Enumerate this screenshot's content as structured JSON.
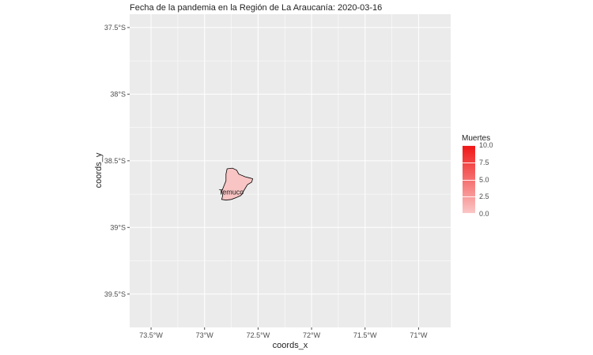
{
  "title": "Fecha de la pandemia en la Región de La Araucanía: 2020-03-16",
  "map": {
    "x_axis_title": "coords_x",
    "y_axis_title": "coords_y",
    "x_ticks": [
      {
        "label": "73.5°W",
        "lon": -73.5
      },
      {
        "label": "73°W",
        "lon": -73.0
      },
      {
        "label": "72.5°W",
        "lon": -72.5
      },
      {
        "label": "72°W",
        "lon": -72.0
      },
      {
        "label": "71.5°W",
        "lon": -71.5
      },
      {
        "label": "71°W",
        "lon": -71.0
      }
    ],
    "y_ticks": [
      {
        "label": "37.5°S",
        "lat": -37.5
      },
      {
        "label": "38°S",
        "lat": -38.0
      },
      {
        "label": "38.5°S",
        "lat": -38.5
      },
      {
        "label": "39°S",
        "lat": -39.0
      },
      {
        "label": "39.5°S",
        "lat": -39.5
      }
    ],
    "lon_range": [
      -73.7,
      -70.7
    ],
    "lat_range": [
      -39.75,
      -37.4
    ],
    "background": "#ebebeb",
    "grid_color": "#ffffff",
    "regions": [
      {
        "name": "Temuco",
        "deaths": 0,
        "fill": "#f9c4c4",
        "stroke": "#000000",
        "label_lon": -72.75,
        "label_lat": -38.735,
        "outline": [
          [
            -72.79,
            -38.56
          ],
          [
            -72.74,
            -38.555
          ],
          [
            -72.7,
            -38.57
          ],
          [
            -72.68,
            -38.6
          ],
          [
            -72.62,
            -38.62
          ],
          [
            -72.57,
            -38.63
          ],
          [
            -72.55,
            -38.635
          ],
          [
            -72.56,
            -38.66
          ],
          [
            -72.6,
            -38.68
          ],
          [
            -72.63,
            -38.72
          ],
          [
            -72.66,
            -38.76
          ],
          [
            -72.7,
            -38.775
          ],
          [
            -72.75,
            -38.79
          ],
          [
            -72.8,
            -38.795
          ],
          [
            -72.84,
            -38.79
          ],
          [
            -72.83,
            -38.76
          ],
          [
            -72.84,
            -38.73
          ],
          [
            -72.82,
            -38.69
          ],
          [
            -72.8,
            -38.65
          ],
          [
            -72.8,
            -38.6
          ],
          [
            -72.79,
            -38.56
          ]
        ]
      }
    ]
  },
  "legend": {
    "title": "Muertes",
    "min": 0,
    "max": 10,
    "low_color": "#fbc8c8",
    "high_color": "#f01515",
    "breaks": [
      {
        "value": 10,
        "label": "10.0"
      },
      {
        "value": 7.5,
        "label": "7.5"
      },
      {
        "value": 5,
        "label": "5.0"
      },
      {
        "value": 2.5,
        "label": "2.5"
      },
      {
        "value": 0,
        "label": "0.0"
      }
    ]
  }
}
